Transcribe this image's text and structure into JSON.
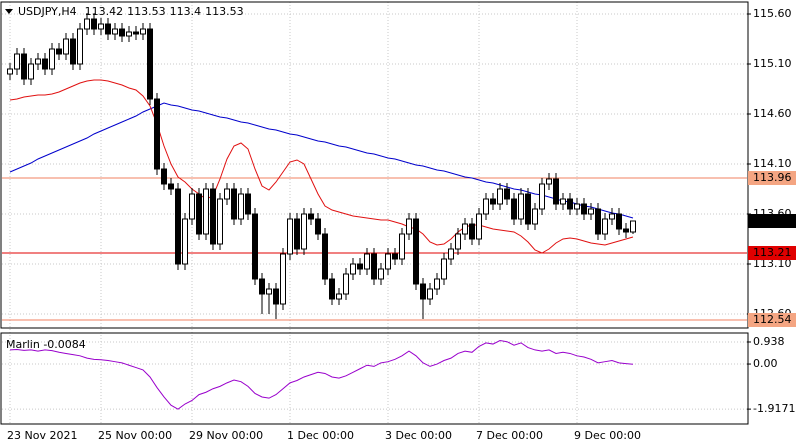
{
  "chart_data": [
    {
      "type": "candlestick",
      "title": "USDJPY,H4",
      "categories": [
        "23 Nov 2021",
        null,
        null,
        null,
        null,
        null,
        null,
        null,
        null,
        null,
        null,
        null,
        null,
        "25 Nov 00:00",
        null,
        null,
        null,
        null,
        null,
        null,
        null,
        null,
        null,
        null,
        null,
        null,
        "29 Nov 00:00",
        null,
        null,
        null,
        null,
        null,
        null,
        null,
        null,
        null,
        null,
        null,
        null,
        null,
        "1 Dec 00:00",
        null,
        null,
        null,
        null,
        null,
        null,
        null,
        null,
        null,
        null,
        null,
        null,
        null,
        "3 Dec 00:00",
        null,
        null,
        null,
        null,
        null,
        null,
        null,
        null,
        null,
        null,
        null,
        null,
        "7 Dec 00:00",
        null,
        null,
        null,
        null,
        null,
        null,
        null,
        null,
        null,
        null,
        null,
        null,
        null,
        "9 Dec 00:00",
        null,
        null,
        null,
        null,
        null,
        null,
        null,
        null
      ],
      "open": [
        115.0,
        115.05,
        115.2,
        114.95,
        115.1,
        115.15,
        115.05,
        115.25,
        115.2,
        115.35,
        115.1,
        115.45,
        115.55,
        115.45,
        115.5,
        115.4,
        115.45,
        115.38,
        115.42,
        115.4,
        115.45,
        114.75,
        114.05,
        113.9,
        113.85,
        113.1,
        113.55,
        113.8,
        113.4,
        113.85,
        113.3,
        113.75,
        113.85,
        113.55,
        113.8,
        113.6,
        112.95,
        112.8,
        112.85,
        112.7,
        113.2,
        113.55,
        113.25,
        113.6,
        113.55,
        113.4,
        112.95,
        112.75,
        112.8,
        113.0,
        113.1,
        113.05,
        113.2,
        112.95,
        113.05,
        113.2,
        113.15,
        113.4,
        113.55,
        112.9,
        112.75,
        112.85,
        112.95,
        113.15,
        113.25,
        113.4,
        113.5,
        113.35,
        113.6,
        113.75,
        113.7,
        113.85,
        113.75,
        113.55,
        113.8,
        113.5,
        113.65,
        113.9,
        113.95,
        113.7,
        113.75,
        113.65,
        113.7,
        113.6,
        113.65,
        113.4,
        113.55,
        113.6,
        113.45,
        113.42
      ],
      "high": [
        115.11,
        115.26,
        115.26,
        115.16,
        115.21,
        115.21,
        115.31,
        115.31,
        115.41,
        115.41,
        115.51,
        115.61,
        115.61,
        115.56,
        115.56,
        115.51,
        115.51,
        115.48,
        115.48,
        115.51,
        115.51,
        114.81,
        114.11,
        113.96,
        113.91,
        113.61,
        113.86,
        113.86,
        113.91,
        113.91,
        113.81,
        113.91,
        113.91,
        113.86,
        113.86,
        113.66,
        113.01,
        112.91,
        112.91,
        113.26,
        113.61,
        113.61,
        113.66,
        113.66,
        113.61,
        113.46,
        113.01,
        112.86,
        113.06,
        113.16,
        113.16,
        113.26,
        113.26,
        113.11,
        113.26,
        113.26,
        113.46,
        113.61,
        113.61,
        112.96,
        112.91,
        113.01,
        113.21,
        113.31,
        113.46,
        113.56,
        113.56,
        113.66,
        113.81,
        113.81,
        113.91,
        113.91,
        113.81,
        113.86,
        113.86,
        113.71,
        113.96,
        114.01,
        114.01,
        113.81,
        113.81,
        113.76,
        113.76,
        113.71,
        113.71,
        113.61,
        113.66,
        113.66,
        113.51,
        113.53
      ],
      "low": [
        114.94,
        114.99,
        114.89,
        114.89,
        115.04,
        114.99,
        114.99,
        115.14,
        115.14,
        115.04,
        115.04,
        115.39,
        115.39,
        115.39,
        115.34,
        115.34,
        115.32,
        115.32,
        115.34,
        115.34,
        114.69,
        113.99,
        113.84,
        113.79,
        113.04,
        113.04,
        113.49,
        113.34,
        113.34,
        113.24,
        113.24,
        113.69,
        113.49,
        113.49,
        113.54,
        112.89,
        112.6,
        112.6,
        112.55,
        112.64,
        113.14,
        113.19,
        113.19,
        113.49,
        113.34,
        112.89,
        112.69,
        112.69,
        112.74,
        112.94,
        112.99,
        112.99,
        112.89,
        112.89,
        112.99,
        113.09,
        113.09,
        113.34,
        112.84,
        112.55,
        112.69,
        112.79,
        112.89,
        113.09,
        113.19,
        113.34,
        113.29,
        113.29,
        113.54,
        113.64,
        113.64,
        113.69,
        113.49,
        113.49,
        113.44,
        113.44,
        113.59,
        113.84,
        113.64,
        113.64,
        113.59,
        113.59,
        113.54,
        113.54,
        113.34,
        113.34,
        113.49,
        113.39,
        113.36,
        113.4
      ],
      "close": [
        115.05,
        115.2,
        114.95,
        115.1,
        115.15,
        115.05,
        115.25,
        115.2,
        115.35,
        115.1,
        115.45,
        115.55,
        115.45,
        115.5,
        115.4,
        115.45,
        115.38,
        115.42,
        115.4,
        115.45,
        114.75,
        114.05,
        113.9,
        113.85,
        113.1,
        113.55,
        113.8,
        113.4,
        113.85,
        113.3,
        113.75,
        113.85,
        113.55,
        113.8,
        113.6,
        112.95,
        112.8,
        112.85,
        112.7,
        113.2,
        113.55,
        113.25,
        113.6,
        113.55,
        113.4,
        112.95,
        112.75,
        112.8,
        113.0,
        113.1,
        113.05,
        113.2,
        112.95,
        113.05,
        113.2,
        113.15,
        113.4,
        113.55,
        112.9,
        112.75,
        112.85,
        112.95,
        113.15,
        113.25,
        113.4,
        113.5,
        113.35,
        113.6,
        113.75,
        113.7,
        113.85,
        113.75,
        113.55,
        113.8,
        113.5,
        113.65,
        113.9,
        113.95,
        113.7,
        113.75,
        113.65,
        113.7,
        113.6,
        113.65,
        113.4,
        113.55,
        113.6,
        113.45,
        113.42,
        113.53
      ],
      "up_color": "#ffffff",
      "down_color": "#000000",
      "series": [
        {
          "color": "#0000cc",
          "values": [
            114.02,
            114.05,
            114.08,
            114.11,
            114.15,
            114.18,
            114.21,
            114.24,
            114.27,
            114.3,
            114.33,
            114.36,
            114.4,
            114.43,
            114.46,
            114.49,
            114.52,
            114.55,
            114.58,
            114.62,
            114.65,
            114.68,
            114.71,
            114.69,
            114.68,
            114.66,
            114.64,
            114.63,
            114.61,
            114.59,
            114.57,
            114.56,
            114.54,
            114.52,
            114.51,
            114.49,
            114.47,
            114.45,
            114.44,
            114.42,
            114.4,
            114.39,
            114.37,
            114.35,
            114.33,
            114.32,
            114.3,
            114.28,
            114.27,
            114.25,
            114.23,
            114.21,
            114.2,
            114.18,
            114.16,
            114.15,
            114.13,
            114.11,
            114.09,
            114.08,
            114.06,
            114.04,
            114.03,
            114.01,
            113.99,
            113.97,
            113.96,
            113.94,
            113.92,
            113.91,
            113.89,
            113.87,
            113.85,
            113.84,
            113.82,
            113.8,
            113.79,
            113.77,
            113.75,
            113.73,
            113.72,
            113.7,
            113.68,
            113.67,
            113.65,
            113.63,
            113.61,
            113.6,
            113.58,
            113.56
          ]
        },
        {
          "color": "#e01010",
          "values": [
            114.74,
            114.75,
            114.77,
            114.78,
            114.79,
            114.79,
            114.8,
            114.82,
            114.85,
            114.88,
            114.91,
            114.93,
            114.94,
            114.94,
            114.93,
            114.91,
            114.89,
            114.86,
            114.84,
            114.78,
            114.68,
            114.5,
            114.28,
            114.1,
            113.97,
            113.92,
            113.85,
            113.8,
            113.75,
            113.78,
            113.95,
            114.15,
            114.28,
            114.31,
            114.25,
            114.05,
            113.88,
            113.84,
            113.92,
            114.02,
            114.12,
            114.14,
            114.1,
            113.95,
            113.8,
            113.68,
            113.64,
            113.62,
            113.6,
            113.58,
            113.57,
            113.56,
            113.55,
            113.54,
            113.54,
            113.52,
            113.5,
            113.47,
            113.45,
            113.4,
            113.32,
            113.29,
            113.3,
            113.35,
            113.42,
            113.47,
            113.49,
            113.49,
            113.47,
            113.45,
            113.44,
            113.43,
            113.42,
            113.38,
            113.32,
            113.24,
            113.21,
            113.25,
            113.31,
            113.35,
            113.36,
            113.35,
            113.33,
            113.31,
            113.3,
            113.29,
            113.31,
            113.33,
            113.35,
            113.37
          ]
        }
      ],
      "hlines": [
        {
          "value": 113.96,
          "color": "#f08060",
          "label_color": "#f4a582"
        },
        {
          "value": 113.21,
          "color": "#e00000",
          "label_color": "#e00000"
        },
        {
          "value": 112.54,
          "color": "#f08060",
          "label_color": "#f4a582"
        }
      ],
      "ylim": [
        112.46,
        115.72
      ],
      "yticks": [
        {
          "value": 115.6,
          "label": "115.60"
        },
        {
          "value": 115.1,
          "label": "115.10"
        },
        {
          "value": 114.6,
          "label": "114.60"
        },
        {
          "value": 114.1,
          "label": "114.10"
        },
        {
          "value": 113.6,
          "label": "113.60"
        },
        {
          "value": 113.1,
          "label": "113.10"
        },
        {
          "value": 112.6,
          "label": "112.60"
        }
      ],
      "grid": true
    },
    {
      "type": "line",
      "label": "Marlin -0.0084",
      "series": [
        {
          "color": "#9900cc",
          "values": [
            0.6,
            0.62,
            0.58,
            0.6,
            0.55,
            0.6,
            0.57,
            0.5,
            0.45,
            0.4,
            0.35,
            0.25,
            0.2,
            0.18,
            0.15,
            0.1,
            0.05,
            -0.05,
            -0.15,
            -0.25,
            -0.55,
            -1.0,
            -1.4,
            -1.75,
            -1.92,
            -1.7,
            -1.55,
            -1.3,
            -1.2,
            -1.05,
            -0.95,
            -0.8,
            -0.68,
            -0.75,
            -0.95,
            -1.25,
            -1.4,
            -1.45,
            -1.3,
            -1.05,
            -0.8,
            -0.7,
            -0.55,
            -0.45,
            -0.35,
            -0.4,
            -0.55,
            -0.6,
            -0.5,
            -0.35,
            -0.2,
            -0.05,
            -0.1,
            0.05,
            0.1,
            0.2,
            0.35,
            0.55,
            0.35,
            0.05,
            -0.1,
            0.0,
            0.15,
            0.25,
            0.45,
            0.55,
            0.5,
            0.75,
            0.9,
            0.85,
            1.0,
            0.95,
            0.8,
            0.9,
            0.7,
            0.6,
            0.55,
            0.6,
            0.45,
            0.5,
            0.45,
            0.35,
            0.3,
            0.2,
            0.05,
            0.1,
            0.15,
            0.05,
            0.02,
            -0.0084
          ]
        }
      ],
      "ylim": [
        -2.55,
        1.32
      ],
      "yticks": [
        0.938,
        {
          "value": 0,
          "label": "0.00"
        },
        -1.9171
      ],
      "grid": true
    }
  ]
}
